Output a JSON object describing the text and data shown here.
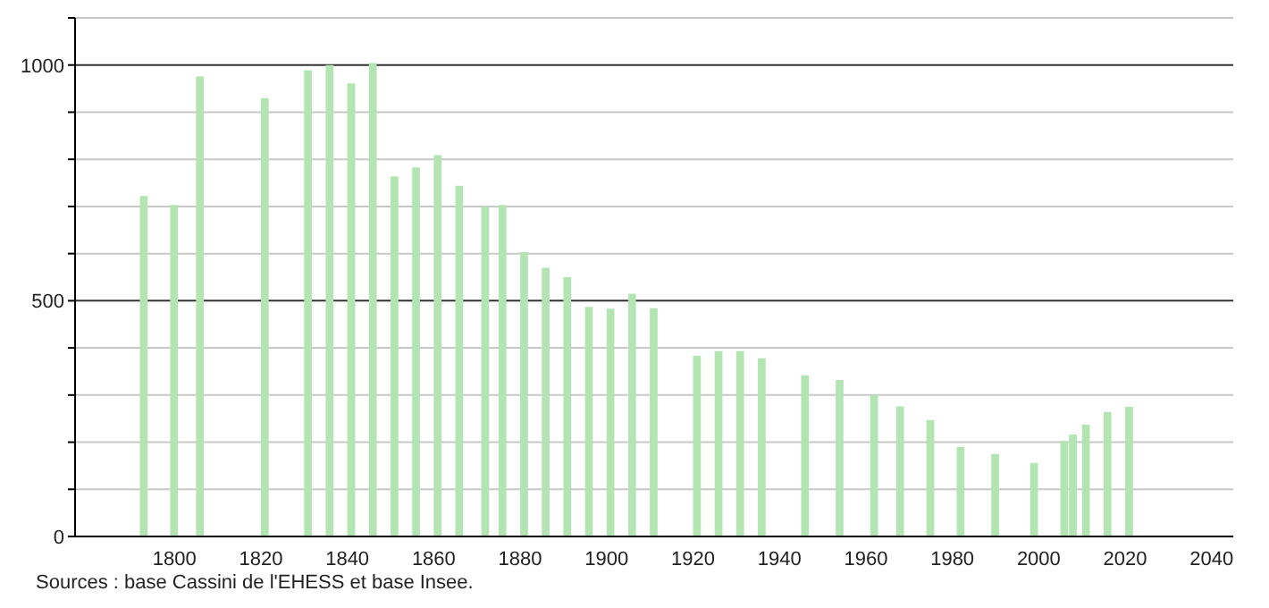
{
  "chart_data": {
    "type": "bar",
    "x": [
      1793,
      1800,
      1806,
      1821,
      1831,
      1836,
      1841,
      1846,
      1851,
      1856,
      1861,
      1866,
      1872,
      1876,
      1881,
      1886,
      1891,
      1896,
      1901,
      1906,
      1911,
      1921,
      1926,
      1931,
      1936,
      1946,
      1954,
      1962,
      1968,
      1975,
      1982,
      1990,
      1999,
      2006,
      2008,
      2011,
      2016,
      2021
    ],
    "values": [
      722,
      703,
      976,
      930,
      989,
      1000,
      961,
      1004,
      764,
      783,
      809,
      744,
      700,
      703,
      603,
      570,
      550,
      487,
      483,
      515,
      484,
      383,
      393,
      393,
      378,
      342,
      332,
      300,
      276,
      247,
      190,
      175,
      156,
      203,
      216,
      237,
      264,
      275
    ],
    "color": "#b2e5b2",
    "xlim": [
      1777,
      2045
    ],
    "xticks": [
      1800,
      1820,
      1840,
      1860,
      1880,
      1900,
      1920,
      1940,
      1960,
      1980,
      2000,
      2020,
      2040
    ],
    "ylim": [
      0,
      1100
    ],
    "yticks": [
      0,
      {
        "value": 100,
        "label": null
      },
      {
        "value": 200,
        "label": null
      },
      {
        "value": 300,
        "label": null
      },
      {
        "value": 400,
        "label": null
      },
      500,
      {
        "value": 600,
        "label": null
      },
      {
        "value": 700,
        "label": null
      },
      {
        "value": 800,
        "label": null
      },
      {
        "value": 900,
        "label": null
      },
      1000,
      {
        "value": 1100,
        "label": null
      }
    ],
    "grid": "y",
    "annotations": [
      "Sources : base Cassini de l'EHESS et base Insee."
    ]
  }
}
